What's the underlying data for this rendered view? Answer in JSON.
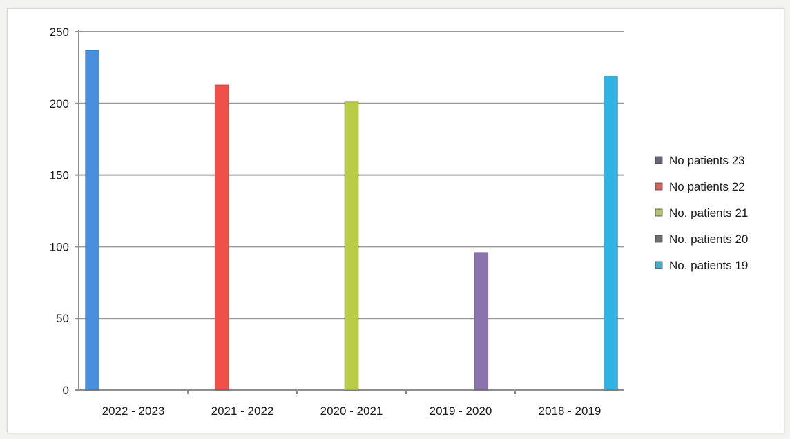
{
  "chart_data": {
    "type": "bar",
    "categories": [
      "2022 - 2023",
      "2021 - 2022",
      "2020 - 2021",
      "2019 - 2020",
      "2018 - 2019"
    ],
    "series": [
      {
        "name": "No patients 23",
        "color": "#4a8fdc",
        "values": [
          237,
          null,
          null,
          null,
          null
        ]
      },
      {
        "name": "No patients 22",
        "color": "#f0504a",
        "values": [
          null,
          213,
          null,
          null,
          null
        ]
      },
      {
        "name": "No. patients 21",
        "color": "#b9cc45",
        "values": [
          null,
          null,
          201,
          null,
          null
        ]
      },
      {
        "name": "No. patients 20",
        "color": "#8b73ad",
        "values": [
          null,
          null,
          null,
          96,
          null
        ]
      },
      {
        "name": "No. patients 19",
        "color": "#2eb3e3",
        "values": [
          null,
          null,
          null,
          null,
          219
        ]
      }
    ],
    "legend_marker_colors": [
      "#6b6178",
      "#d9605d",
      "#b5c46a",
      "#6d6d6d",
      "#46a6c4"
    ],
    "ylim": [
      0,
      250
    ],
    "yticks": [
      0,
      50,
      100,
      150,
      200,
      250
    ],
    "grid": true,
    "legend_position": "right"
  }
}
